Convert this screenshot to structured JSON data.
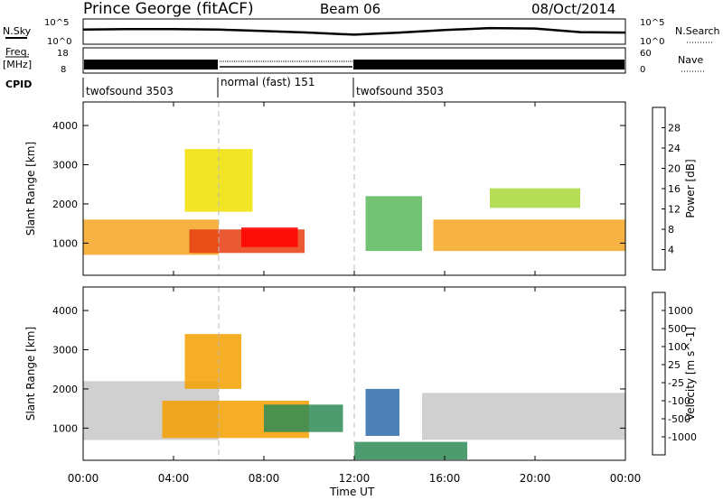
{
  "header": {
    "station": "Prince George (fitACF)",
    "beam": "Beam 06",
    "date": "08/Oct/2014"
  },
  "nsky": {
    "label": "N.Sky",
    "ticks": [
      "10^5",
      "10^0"
    ],
    "right_ticks": [
      "10^5",
      "10^0"
    ],
    "right_label": "N.Search"
  },
  "freq": {
    "label_top": "Freq.",
    "label_unit": "[MHz]",
    "ticks": [
      "18",
      "8"
    ],
    "right_ticks": [
      "60",
      "0"
    ],
    "right_label": "Nave"
  },
  "cpid": {
    "label": "CPID",
    "segments": [
      {
        "name": "twofsound 3503",
        "start_hour": 0,
        "end_hour": 6
      },
      {
        "name": "normal (fast) 151",
        "start_hour": 6,
        "end_hour": 12
      },
      {
        "name": "twofsound 3503",
        "start_hour": 12,
        "end_hour": 24
      }
    ]
  },
  "power_panel": {
    "ylabel": "Slant Range [km]",
    "yticks": [
      "4000",
      "3000",
      "2000",
      "1000"
    ],
    "colorbar_label": "Power [dB]",
    "colorbar_ticks": [
      "28",
      "24",
      "20",
      "16",
      "12",
      "8",
      "4"
    ],
    "colors": [
      "#0000ff",
      "#1f4fb8",
      "#2e8b57",
      "#5cb85c",
      "#a8d838",
      "#f0e000",
      "#f5a623",
      "#f07800",
      "#e83c10",
      "#ff0000"
    ]
  },
  "velocity_panel": {
    "ylabel": "Slant Range [km]",
    "yticks": [
      "4000",
      "3000",
      "2000",
      "1000"
    ],
    "colorbar_label": "Velocity [m s^-1]",
    "colorbar_ticks": [
      "1000",
      "500",
      "100",
      "25",
      "-25",
      "-100",
      "-500",
      "-1000"
    ],
    "colors": [
      "#1d3fb5",
      "#2e6aa8",
      "#2e8b57",
      "#5fc040",
      "#c8c8c8",
      "#ffc000",
      "#f5a000",
      "#f07800",
      "#e83c00",
      "#ff0000"
    ]
  },
  "xaxis": {
    "label": "Time UT",
    "ticks": [
      "00:00",
      "04:00",
      "08:00",
      "12:00",
      "16:00",
      "20:00",
      "00:00"
    ]
  },
  "chart_data": [
    {
      "type": "line",
      "title": "N.Sky",
      "x": [
        0,
        2,
        4,
        6,
        8,
        10,
        12,
        14,
        16,
        18,
        20,
        22,
        24
      ],
      "y": [
        2.9,
        3.0,
        3.0,
        2.9,
        2.6,
        2.3,
        1.9,
        2.3,
        2.8,
        3.2,
        3.1,
        2.4,
        2.3
      ],
      "xlabel": "Time UT",
      "ylim": [
        0,
        5
      ]
    },
    {
      "type": "heatmap",
      "title": "Power [dB]",
      "xlabel": "Time UT",
      "ylabel": "Slant Range [km]",
      "xlim": [
        0,
        24
      ],
      "ylim": [
        180,
        4600
      ],
      "clim": [
        0,
        30
      ],
      "bands": [
        {
          "t0": 0.0,
          "t1": 6.0,
          "r0": 700,
          "r1": 1600,
          "value": 18
        },
        {
          "t0": 4.7,
          "t1": 9.8,
          "r0": 750,
          "r1": 1350,
          "value": 26
        },
        {
          "t0": 7.0,
          "t1": 9.5,
          "r0": 900,
          "r1": 1400,
          "value": 30
        },
        {
          "t0": 4.5,
          "t1": 7.5,
          "r0": 1800,
          "r1": 3400,
          "value": 15
        },
        {
          "t0": 12.5,
          "t1": 15.0,
          "r0": 800,
          "r1": 2200,
          "value": 10
        },
        {
          "t0": 15.5,
          "t1": 24.0,
          "r0": 800,
          "r1": 1600,
          "value": 20
        },
        {
          "t0": 18.0,
          "t1": 22.0,
          "r0": 1900,
          "r1": 2400,
          "value": 12
        }
      ]
    },
    {
      "type": "heatmap",
      "title": "Velocity [m s^-1]",
      "xlabel": "Time UT",
      "ylabel": "Slant Range [km]",
      "xlim": [
        0,
        24
      ],
      "ylim": [
        180,
        4600
      ],
      "clim": [
        -1000,
        1000
      ],
      "bands": [
        {
          "t0": 0.0,
          "t1": 6.0,
          "r0": 700,
          "r1": 2200,
          "value": 0
        },
        {
          "t0": 3.5,
          "t1": 10.0,
          "r0": 750,
          "r1": 1700,
          "value": -400
        },
        {
          "t0": 4.5,
          "t1": 7.0,
          "r0": 2000,
          "r1": 3400,
          "value": -200
        },
        {
          "t0": 8.0,
          "t1": 11.5,
          "r0": 900,
          "r1": 1600,
          "value": 200
        },
        {
          "t0": 12.5,
          "t1": 14.0,
          "r0": 800,
          "r1": 2000,
          "value": 700
        },
        {
          "t0": 15.0,
          "t1": 24.0,
          "r0": 700,
          "r1": 1900,
          "value": 0
        },
        {
          "t0": 12.0,
          "t1": 17.0,
          "r0": 200,
          "r1": 650,
          "value": 150
        }
      ]
    }
  ]
}
